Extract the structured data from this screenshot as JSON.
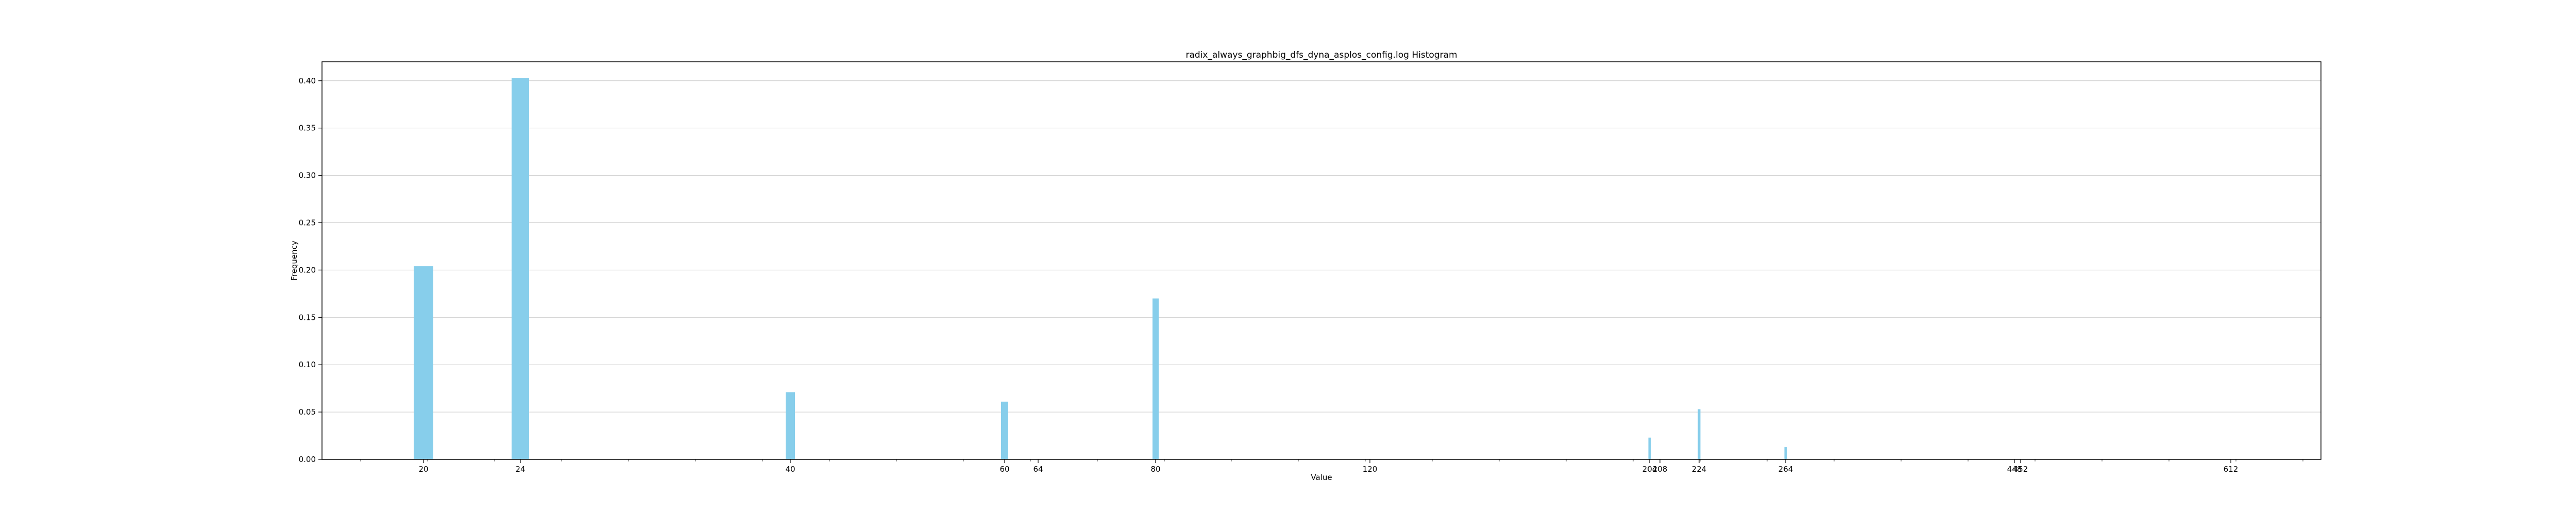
{
  "chart_data": {
    "type": "bar",
    "title": "radix_always_graphbig_dfs_dyna_asplos_config.log Histogram",
    "xlabel": "Value",
    "ylabel": "Frequency",
    "ylim": [
      0,
      0.42
    ],
    "y_ticks": [
      "0.00",
      "0.05",
      "0.10",
      "0.15",
      "0.20",
      "0.25",
      "0.30",
      "0.35",
      "0.40"
    ],
    "x_ticks": [
      "20",
      "24",
      "40",
      "60",
      "64",
      "80",
      "120",
      "204",
      "208",
      "224",
      "264",
      "448",
      "452",
      "612"
    ],
    "grid": "horizontal",
    "color": "#87ceeb",
    "bars": [
      {
        "label": "20",
        "value": 0.204
      },
      {
        "label": "24",
        "value": 0.403
      },
      {
        "label": "40",
        "value": 0.071
      },
      {
        "label": "60",
        "value": 0.061
      },
      {
        "label": "80",
        "value": 0.17
      },
      {
        "label": "204",
        "value": 0.023
      },
      {
        "label": "224",
        "value": 0.053
      },
      {
        "label": "264",
        "value": 0.013
      }
    ]
  }
}
